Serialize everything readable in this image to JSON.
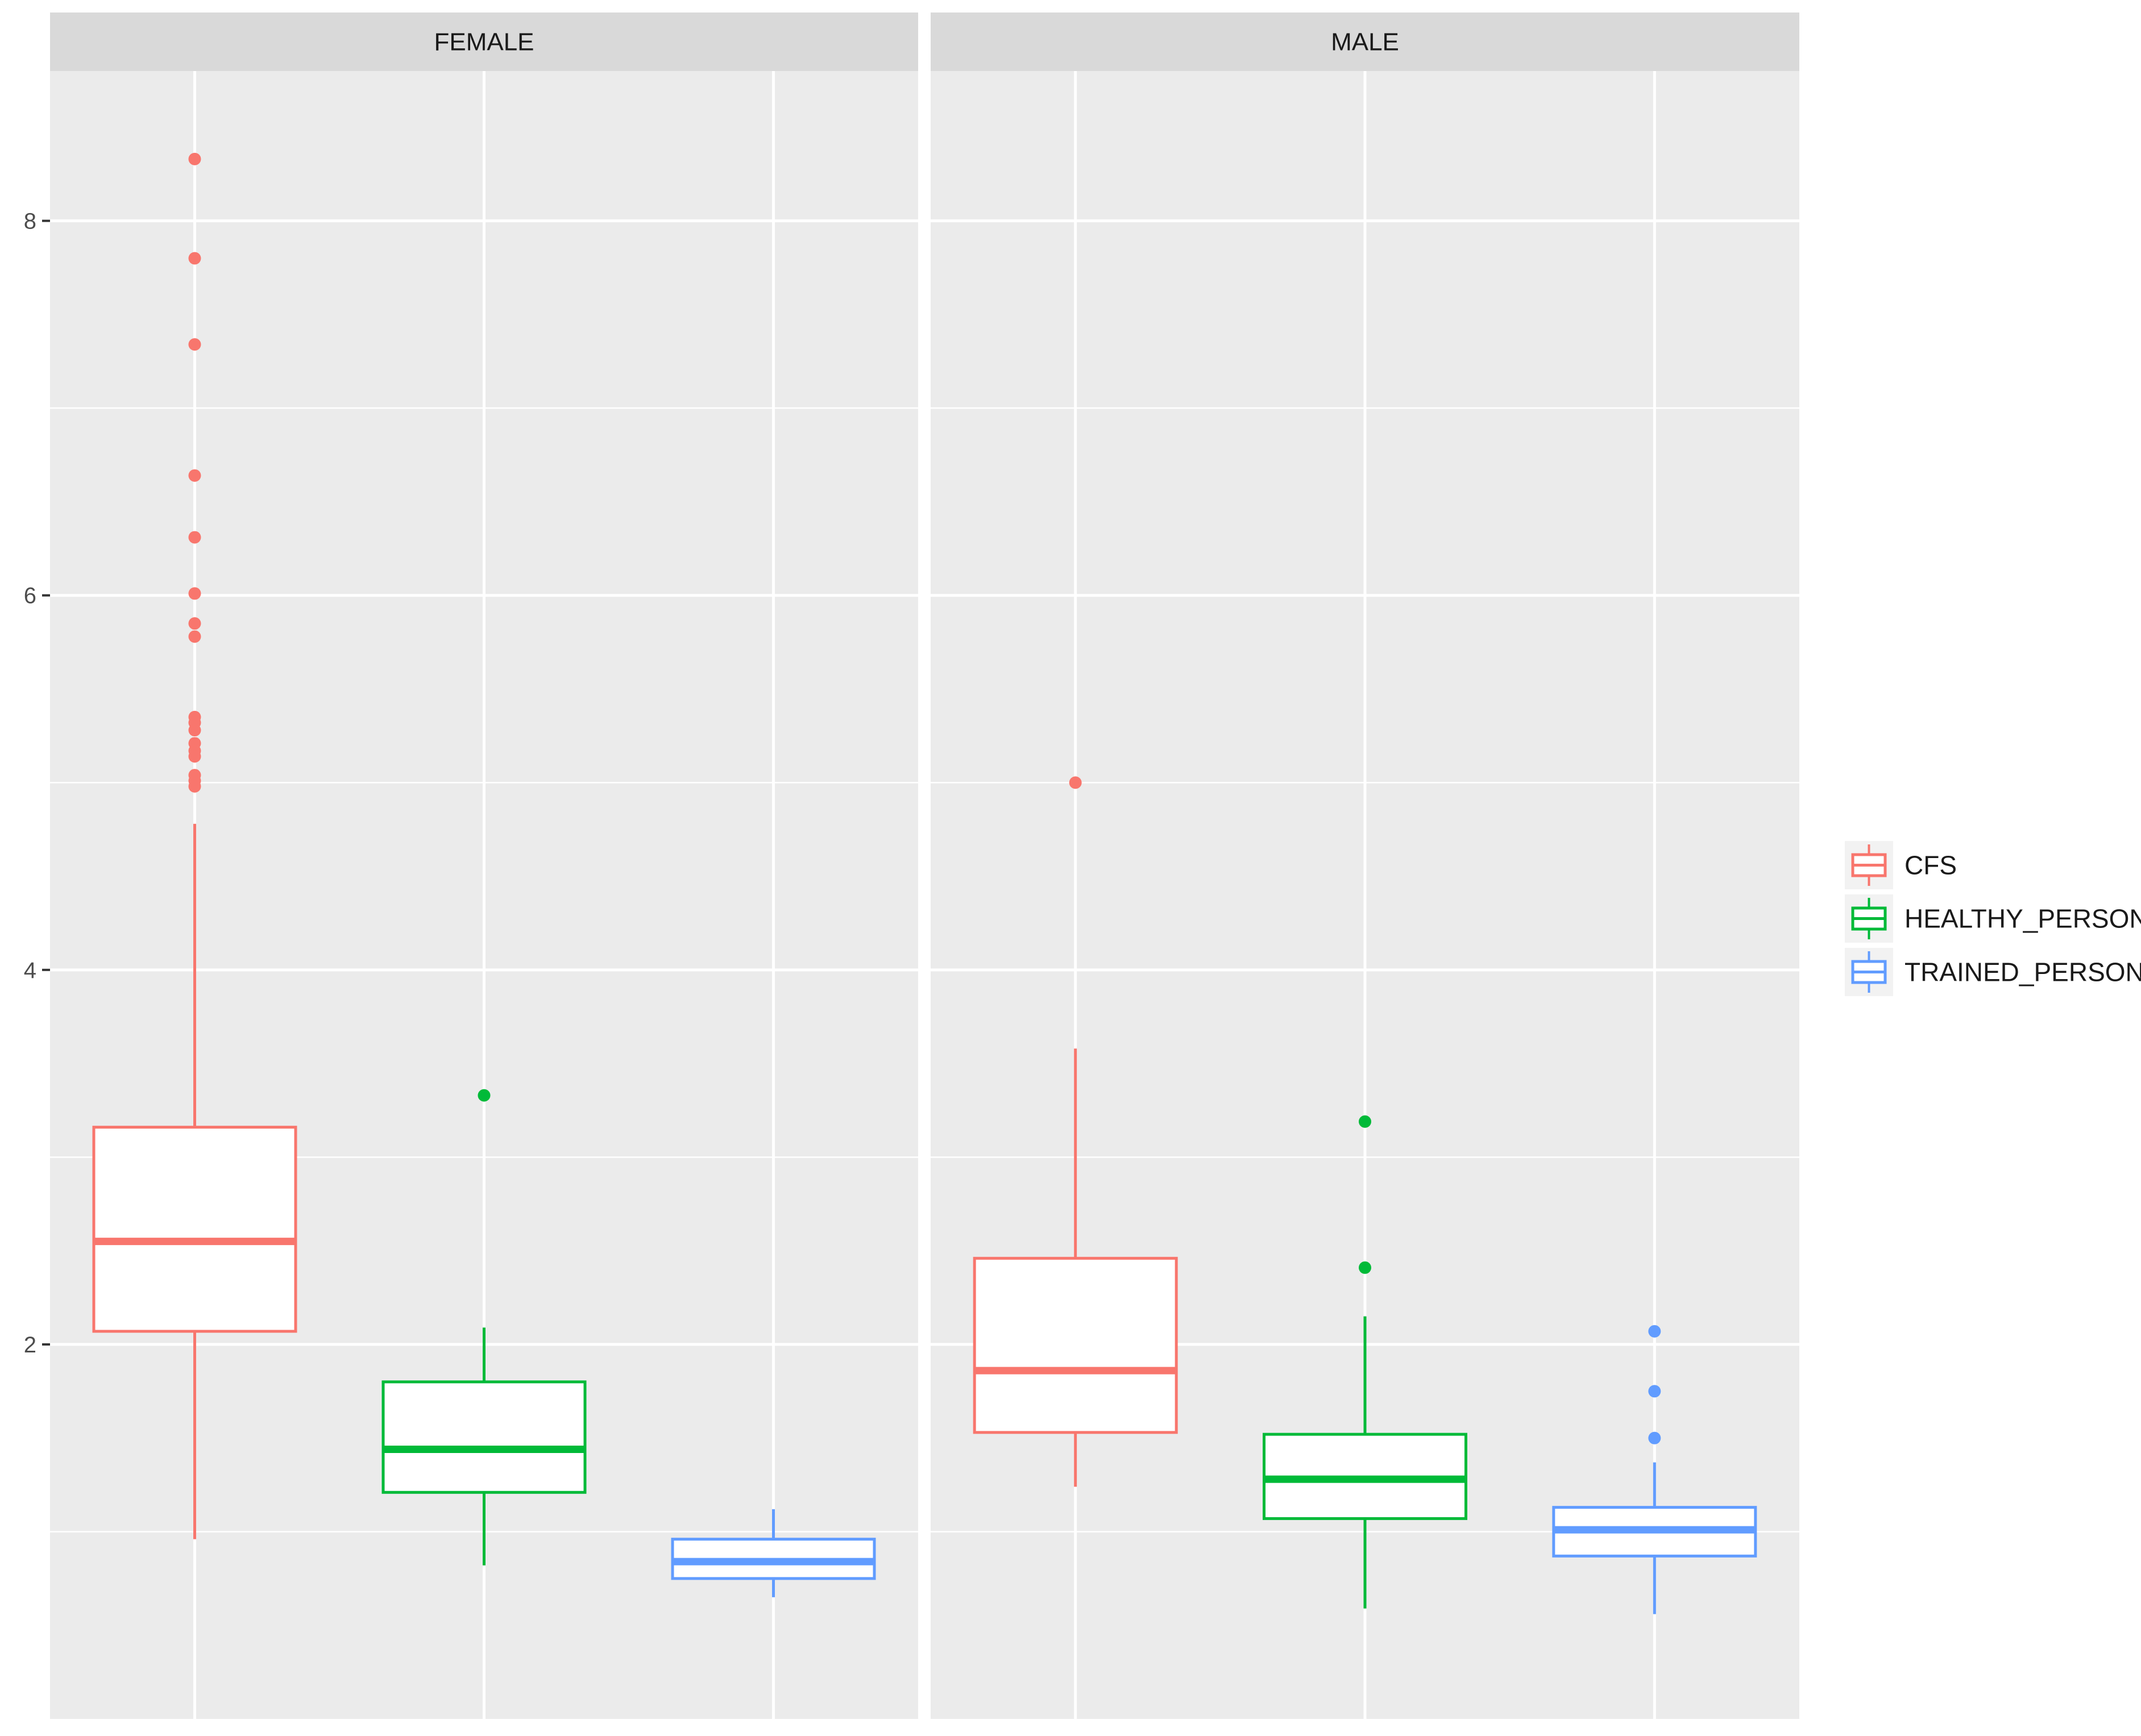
{
  "chart_data": {
    "type": "boxplot",
    "facets": [
      "FEMALE",
      "MALE"
    ],
    "categories": [
      "CFS",
      "HEALTHY_PERSON",
      "TRAINED_PERSON"
    ],
    "ylim": [
      0.0,
      8.8
    ],
    "yticks": [
      2,
      4,
      6,
      8
    ],
    "grid": true,
    "legend_position": "right",
    "colors": {
      "CFS": "#F8766D",
      "HEALTHY_PERSON": "#00BA38",
      "TRAINED_PERSON": "#619CFF"
    },
    "panel_background": "#EBEBEB",
    "strip_background": "#D9D9D9",
    "legend": [
      "CFS",
      "HEALTHY_PERSON",
      "TRAINED_PERSON"
    ],
    "boxes": {
      "FEMALE": {
        "CFS": {
          "whisker_low": 0.96,
          "q1": 2.07,
          "median": 2.55,
          "q3": 3.16,
          "whisker_high": 4.78,
          "outliers": [
            8.33,
            7.8,
            7.34,
            6.64,
            6.31,
            6.01,
            5.85,
            5.78,
            5.35,
            5.32,
            5.28,
            5.21,
            5.17,
            5.14,
            5.04,
            5.01,
            4.98
          ]
        },
        "HEALTHY_PERSON": {
          "whisker_low": 0.82,
          "q1": 1.21,
          "median": 1.44,
          "q3": 1.8,
          "whisker_high": 2.09,
          "outliers": [
            3.33
          ]
        },
        "TRAINED_PERSON": {
          "whisker_low": 0.65,
          "q1": 0.75,
          "median": 0.84,
          "q3": 0.96,
          "whisker_high": 1.12,
          "outliers": []
        }
      },
      "MALE": {
        "CFS": {
          "whisker_low": 1.24,
          "q1": 1.53,
          "median": 1.86,
          "q3": 2.46,
          "whisker_high": 3.58,
          "outliers": [
            5.0
          ]
        },
        "HEALTHY_PERSON": {
          "whisker_low": 0.59,
          "q1": 1.07,
          "median": 1.28,
          "q3": 1.52,
          "whisker_high": 2.15,
          "outliers": [
            3.19,
            2.41
          ]
        },
        "TRAINED_PERSON": {
          "whisker_low": 0.56,
          "q1": 0.87,
          "median": 1.01,
          "q3": 1.13,
          "whisker_high": 1.37,
          "outliers": [
            2.07,
            1.75,
            1.5
          ]
        }
      }
    }
  }
}
